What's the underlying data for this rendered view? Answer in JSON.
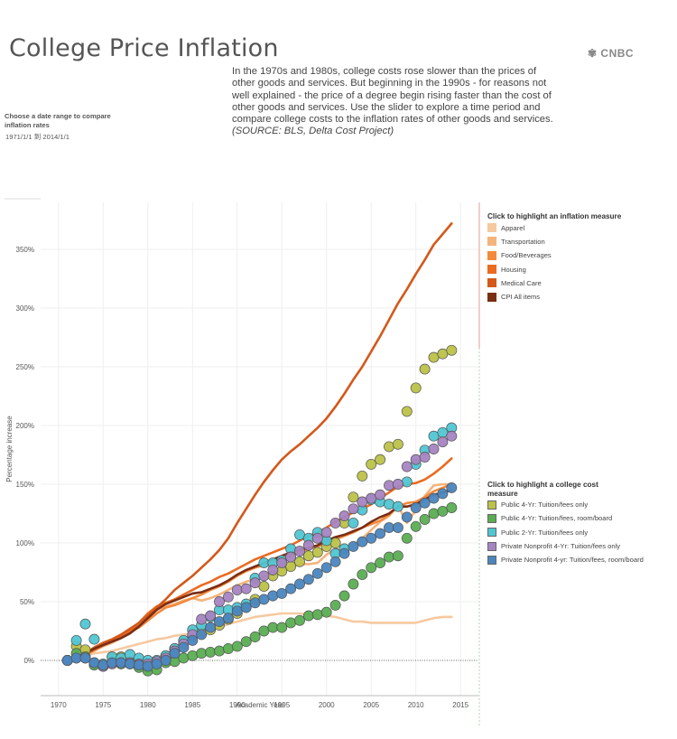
{
  "page": {
    "title": "College Price Inflation",
    "brand": "CNBC",
    "description": "In the 1970s and 1980s, college costs rose slower than the prices of other goods and services. But beginning in the 1990s - for reasons not well explained - the price of a degree begin rising faster than the cost of other goods and services. Use the slider to explore a time period and compare college costs to the inflation rates of other goods and services.",
    "source": "(SOURCE: BLS, Delta Cost Project)",
    "range_label": "Choose a date range to compare inflation rates",
    "range_value": "1971/1/1 到 2014/1/1"
  },
  "legend_inflation": {
    "title": "Click to highlight an inflation measure",
    "items": [
      {
        "label": "Apparel",
        "color": "#f6c9a0"
      },
      {
        "label": "Transportation",
        "color": "#f4b47c"
      },
      {
        "label": "Food/Beverages",
        "color": "#f4893c"
      },
      {
        "label": "Housing",
        "color": "#ea6a20"
      },
      {
        "label": "Medical Care",
        "color": "#d4581a"
      },
      {
        "label": "CPI All items",
        "color": "#7a2e14"
      }
    ]
  },
  "legend_college": {
    "title": "Click to highlight a college cost measure",
    "items": [
      {
        "label": "Public 4-Yr: Tuition/fees only",
        "color": "#bcc247"
      },
      {
        "label": "Public 4-Yr: Tuition/fees, room/board",
        "color": "#5aae52"
      },
      {
        "label": "Public 2-Yr: Tuition/fees only",
        "color": "#4fc6d3"
      },
      {
        "label": "Private Nonprofit 4-Yr: Tuition/fees only",
        "color": "#a684c2"
      },
      {
        "label": "Private Nonprofit 4-yr: Tuition/fees, room/board",
        "color": "#4a86bf"
      }
    ]
  },
  "chart_data": {
    "type": "line",
    "xlabel": "Academic Year",
    "ylabel": "Percentage increase",
    "xlim": [
      1968,
      2017
    ],
    "ylim": [
      -30,
      390
    ],
    "x_ticks": [
      1970,
      1975,
      1980,
      1985,
      1990,
      1995,
      2000,
      2005,
      2010,
      2015
    ],
    "y_ticks": [
      0,
      50,
      100,
      150,
      200,
      250,
      300,
      350
    ],
    "y_tick_labels": [
      "0%",
      "50%",
      "100%",
      "150%",
      "200%",
      "250%",
      "300%",
      "350%"
    ],
    "grid": true,
    "lines": [
      {
        "name": "Apparel",
        "color": "#f6c9a0",
        "x": [
          1971,
          1972,
          1973,
          1974,
          1975,
          1976,
          1977,
          1978,
          1979,
          1980,
          1981,
          1982,
          1983,
          1984,
          1985,
          1986,
          1987,
          1988,
          1989,
          1990,
          1991,
          1992,
          1993,
          1994,
          1995,
          1996,
          1997,
          1998,
          1999,
          2000,
          2001,
          2002,
          2003,
          2004,
          2005,
          2006,
          2007,
          2008,
          2009,
          2010,
          2011,
          2012,
          2013,
          2014
        ],
        "y": [
          0,
          2,
          4,
          6,
          7,
          8,
          10,
          12,
          14,
          16,
          18,
          19,
          21,
          22,
          23,
          24,
          26,
          28,
          31,
          33,
          35,
          37,
          38,
          39,
          40,
          40,
          40,
          39,
          39,
          38,
          37,
          35,
          33,
          33,
          32,
          32,
          32,
          32,
          32,
          32,
          34,
          36,
          37,
          37
        ]
      },
      {
        "name": "Transportation",
        "color": "#f4b47c",
        "x": [
          1971,
          1972,
          1973,
          1974,
          1975,
          1976,
          1977,
          1978,
          1979,
          1980,
          1981,
          1982,
          1983,
          1984,
          1985,
          1986,
          1987,
          1988,
          1989,
          1990,
          1991,
          1992,
          1993,
          1994,
          1995,
          1996,
          1997,
          1998,
          1999,
          2000,
          2001,
          2002,
          2003,
          2004,
          2005,
          2006,
          2007,
          2008,
          2009,
          2010,
          2011,
          2012,
          2013,
          2014
        ],
        "y": [
          0,
          1,
          3,
          8,
          12,
          15,
          19,
          24,
          31,
          38,
          44,
          46,
          48,
          51,
          53,
          51,
          53,
          56,
          60,
          64,
          67,
          69,
          71,
          74,
          77,
          80,
          82,
          82,
          83,
          90,
          95,
          93,
          98,
          104,
          111,
          118,
          123,
          132,
          117,
          128,
          140,
          149,
          150,
          150
        ]
      },
      {
        "name": "Food/Beverages",
        "color": "#f4893c",
        "x": [
          1971,
          1972,
          1973,
          1974,
          1975,
          1976,
          1977,
          1978,
          1979,
          1980,
          1981,
          1982,
          1983,
          1984,
          1985,
          1986,
          1987,
          1988,
          1989,
          1990,
          1991,
          1992,
          1993,
          1994,
          1995,
          1996,
          1997,
          1998,
          1999,
          2000,
          2001,
          2002,
          2003,
          2004,
          2005,
          2006,
          2007,
          2008,
          2009,
          2010,
          2011,
          2012,
          2013,
          2014
        ],
        "y": [
          0,
          2,
          6,
          10,
          14,
          17,
          20,
          24,
          28,
          34,
          40,
          45,
          47,
          50,
          53,
          56,
          60,
          63,
          67,
          72,
          76,
          79,
          81,
          84,
          86,
          89,
          92,
          95,
          97,
          100,
          103,
          106,
          109,
          113,
          116,
          119,
          124,
          131,
          134,
          135,
          139,
          144,
          147,
          150
        ]
      },
      {
        "name": "Housing",
        "color": "#ea6a20",
        "x": [
          1971,
          1972,
          1973,
          1974,
          1975,
          1976,
          1977,
          1978,
          1979,
          1980,
          1981,
          1982,
          1983,
          1984,
          1985,
          1986,
          1987,
          1988,
          1989,
          1990,
          1991,
          1992,
          1993,
          1994,
          1995,
          1996,
          1997,
          1998,
          1999,
          2000,
          2001,
          2002,
          2003,
          2004,
          2005,
          2006,
          2007,
          2008,
          2009,
          2010,
          2011,
          2012,
          2013,
          2014
        ],
        "y": [
          0,
          2,
          5,
          9,
          13,
          16,
          20,
          25,
          32,
          40,
          46,
          49,
          52,
          56,
          60,
          64,
          67,
          71,
          74,
          78,
          82,
          86,
          89,
          92,
          95,
          98,
          102,
          106,
          109,
          113,
          118,
          122,
          126,
          129,
          133,
          138,
          143,
          148,
          150,
          151,
          154,
          159,
          165,
          172
        ]
      },
      {
        "name": "Medical Care",
        "color": "#d4581a",
        "x": [
          1971,
          1972,
          1973,
          1974,
          1975,
          1976,
          1977,
          1978,
          1979,
          1980,
          1981,
          1982,
          1983,
          1984,
          1985,
          1986,
          1987,
          1988,
          1989,
          1990,
          1991,
          1992,
          1993,
          1994,
          1995,
          1996,
          1997,
          1998,
          1999,
          2000,
          2001,
          2002,
          2003,
          2004,
          2005,
          2006,
          2007,
          2008,
          2009,
          2010,
          2011,
          2012,
          2013,
          2014
        ],
        "y": [
          0,
          3,
          6,
          11,
          15,
          18,
          22,
          27,
          32,
          38,
          45,
          52,
          60,
          66,
          72,
          79,
          86,
          94,
          104,
          117,
          129,
          141,
          152,
          162,
          171,
          178,
          184,
          191,
          198,
          206,
          216,
          227,
          239,
          250,
          263,
          276,
          290,
          304,
          316,
          329,
          341,
          354,
          363,
          372
        ]
      },
      {
        "name": "CPI All items",
        "color": "#7a2e14",
        "x": [
          1971,
          1972,
          1973,
          1974,
          1975,
          1976,
          1977,
          1978,
          1979,
          1980,
          1981,
          1982,
          1983,
          1984,
          1985,
          1986,
          1987,
          1988,
          1989,
          1990,
          1991,
          1992,
          1993,
          1994,
          1995,
          1996,
          1997,
          1998,
          1999,
          2000,
          2001,
          2002,
          2003,
          2004,
          2005,
          2006,
          2007,
          2008,
          2009,
          2010,
          2011,
          2012,
          2013,
          2014
        ],
        "y": [
          0,
          2,
          6,
          10,
          13,
          16,
          19,
          23,
          29,
          36,
          43,
          48,
          51,
          54,
          57,
          58,
          61,
          64,
          68,
          73,
          77,
          80,
          83,
          86,
          89,
          92,
          94,
          96,
          98,
          102,
          105,
          107,
          110,
          113,
          118,
          122,
          125,
          131,
          131,
          133,
          137,
          141,
          143,
          145
        ]
      }
    ],
    "scatter": [
      {
        "name": "Public 4-Yr: Tuition/fees only",
        "color": "#bcc247",
        "x": [
          1971,
          1972,
          1973,
          1974,
          1975,
          1976,
          1977,
          1978,
          1979,
          1980,
          1981,
          1982,
          1983,
          1984,
          1985,
          1986,
          1987,
          1988,
          1989,
          1990,
          1991,
          1992,
          1993,
          1994,
          1995,
          1996,
          1997,
          1998,
          1999,
          2000,
          2001,
          2002,
          2003,
          2004,
          2005,
          2006,
          2007,
          2008,
          2009,
          2010,
          2011,
          2012,
          2013,
          2014
        ],
        "y": [
          0,
          12,
          9,
          -3,
          -5,
          3,
          3,
          -1,
          -4,
          -6,
          -2,
          4,
          10,
          16,
          21,
          24,
          26,
          30,
          35,
          40,
          46,
          52,
          63,
          72,
          76,
          80,
          84,
          89,
          92,
          97,
          100,
          117,
          139,
          157,
          167,
          171,
          182,
          184,
          212,
          232,
          248,
          258,
          261,
          264
        ]
      },
      {
        "name": "Public 4-Yr: Tuition/fees, room/board",
        "color": "#5aae52",
        "x": [
          1971,
          1972,
          1973,
          1974,
          1975,
          1976,
          1977,
          1978,
          1979,
          1980,
          1981,
          1982,
          1983,
          1984,
          1985,
          1986,
          1987,
          1988,
          1989,
          1990,
          1991,
          1992,
          1993,
          1994,
          1995,
          1996,
          1997,
          1998,
          1999,
          2000,
          2001,
          2002,
          2003,
          2004,
          2005,
          2006,
          2007,
          2008,
          2009,
          2010,
          2011,
          2012,
          2013,
          2014
        ],
        "y": [
          0,
          6,
          3,
          -4,
          -5,
          -2,
          -3,
          -3,
          -6,
          -9,
          -8,
          -2,
          -1,
          2,
          4,
          6,
          7,
          8,
          10,
          12,
          16,
          20,
          25,
          28,
          28,
          32,
          34,
          38,
          39,
          41,
          47,
          55,
          65,
          73,
          79,
          83,
          88,
          89,
          104,
          114,
          120,
          125,
          127,
          130
        ]
      },
      {
        "name": "Public 2-Yr: Tuition/fees only",
        "color": "#4fc6d3",
        "x": [
          1971,
          1972,
          1973,
          1974,
          1975,
          1976,
          1977,
          1978,
          1979,
          1980,
          1981,
          1982,
          1983,
          1984,
          1985,
          1986,
          1987,
          1988,
          1989,
          1990,
          1991,
          1992,
          1993,
          1994,
          1995,
          1996,
          1997,
          1998,
          1999,
          2000,
          2001,
          2002,
          2003,
          2004,
          2005,
          2006,
          2007,
          2008,
          2009,
          2010,
          2011,
          2012,
          2013,
          2014
        ],
        "y": [
          0,
          17,
          31,
          18,
          -3,
          3,
          2,
          5,
          2,
          0,
          0,
          4,
          10,
          17,
          26,
          30,
          37,
          43,
          43,
          45,
          48,
          70,
          83,
          83,
          85,
          95,
          107,
          104,
          109,
          102,
          91,
          95,
          117,
          128,
          137,
          135,
          133,
          131,
          152,
          167,
          179,
          191,
          194,
          198
        ]
      },
      {
        "name": "Private Nonprofit 4-Yr: Tuition/fees only",
        "color": "#a684c2",
        "x": [
          1971,
          1972,
          1973,
          1974,
          1975,
          1976,
          1977,
          1978,
          1979,
          1980,
          1981,
          1982,
          1983,
          1984,
          1985,
          1986,
          1987,
          1988,
          1989,
          1990,
          1991,
          1992,
          1993,
          1994,
          1995,
          1996,
          1997,
          1998,
          1999,
          2000,
          2001,
          2002,
          2003,
          2004,
          2005,
          2006,
          2007,
          2008,
          2009,
          2010,
          2011,
          2012,
          2013,
          2014
        ],
        "y": [
          0,
          2,
          2,
          -2,
          -5,
          -3,
          -2,
          -2,
          -3,
          -3,
          -1,
          2,
          8,
          14,
          22,
          35,
          38,
          50,
          54,
          60,
          61,
          66,
          72,
          77,
          83,
          88,
          93,
          98,
          104,
          109,
          117,
          123,
          129,
          135,
          138,
          141,
          149,
          150,
          165,
          171,
          173,
          180,
          186,
          191
        ]
      },
      {
        "name": "Private Nonprofit 4-yr: Tuition/fees, room/board",
        "color": "#4a86bf",
        "x": [
          1971,
          1972,
          1973,
          1974,
          1975,
          1976,
          1977,
          1978,
          1979,
          1980,
          1981,
          1982,
          1983,
          1984,
          1985,
          1986,
          1987,
          1988,
          1989,
          1990,
          1991,
          1992,
          1993,
          1994,
          1995,
          1996,
          1997,
          1998,
          1999,
          2000,
          2001,
          2002,
          2003,
          2004,
          2005,
          2006,
          2007,
          2008,
          2009,
          2010,
          2011,
          2012,
          2013,
          2014
        ],
        "y": [
          0,
          2,
          2,
          -2,
          -4,
          -2,
          -2,
          -3,
          -4,
          -5,
          -3,
          0,
          6,
          11,
          17,
          22,
          28,
          33,
          36,
          42,
          45,
          49,
          52,
          55,
          57,
          61,
          65,
          69,
          74,
          79,
          84,
          91,
          97,
          101,
          104,
          108,
          113,
          113,
          122,
          130,
          134,
          138,
          142,
          147
        ]
      }
    ]
  }
}
